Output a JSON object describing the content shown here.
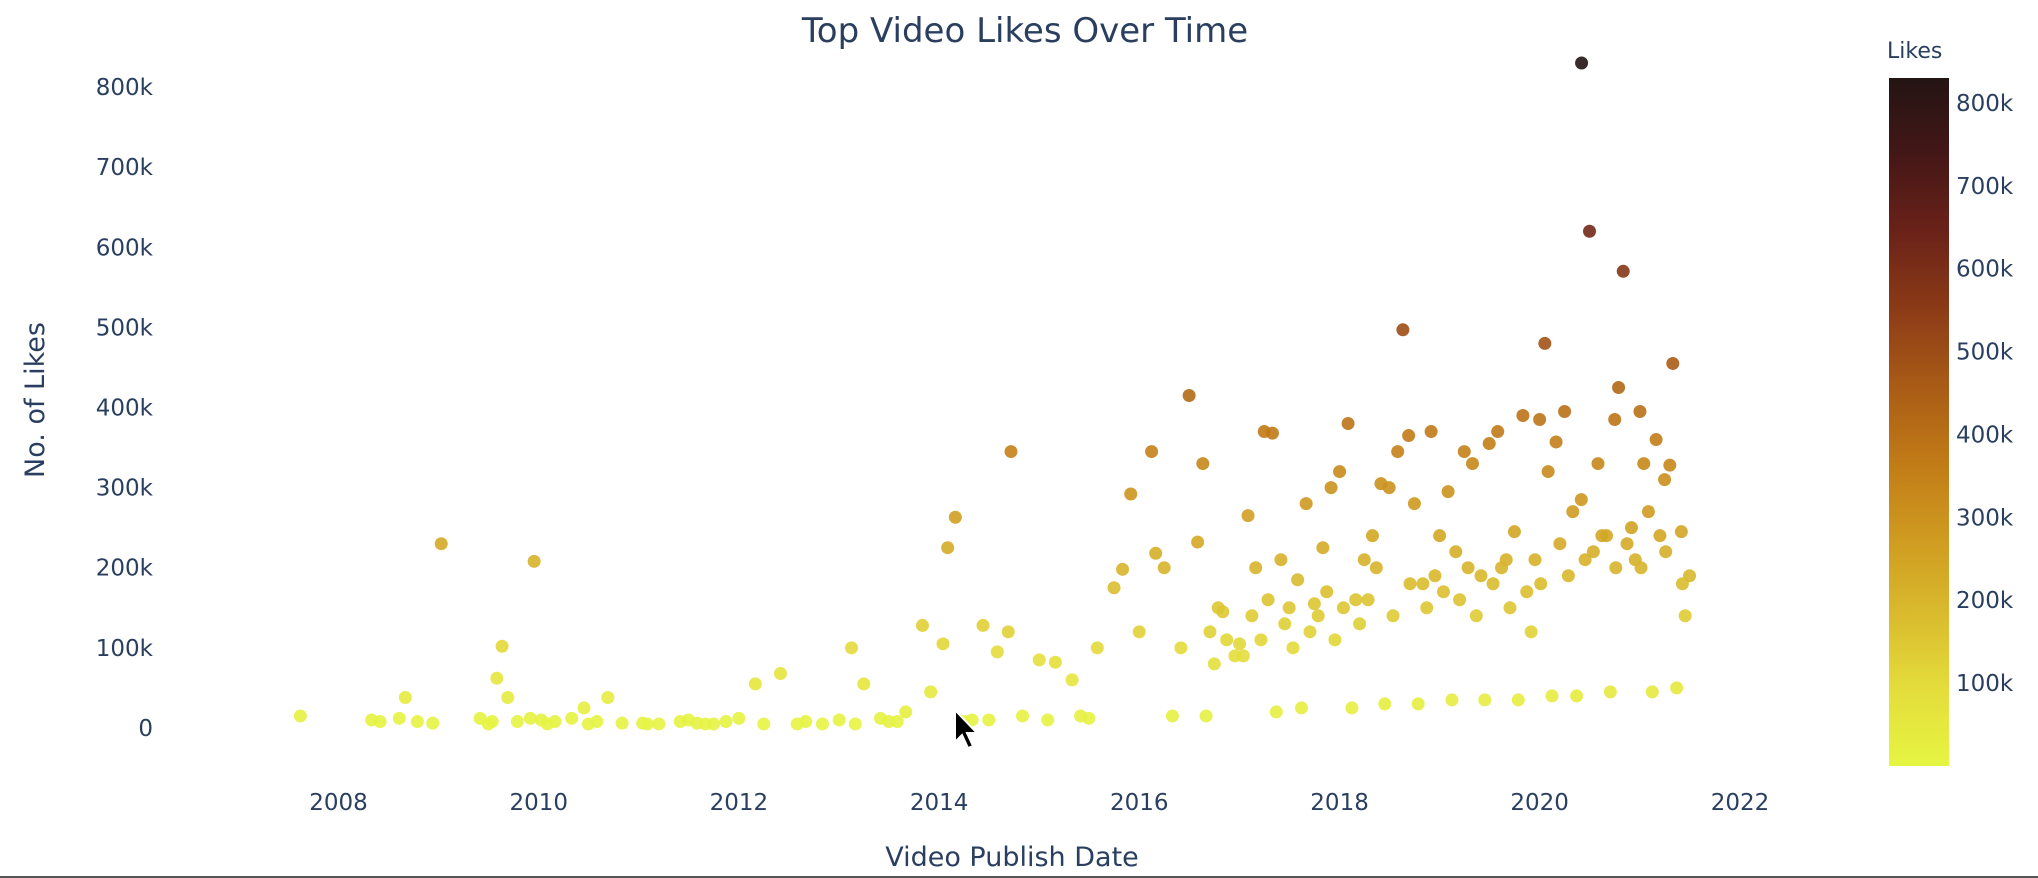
{
  "chart_data": {
    "type": "scatter",
    "title": "Top Video Likes Over Time",
    "xlabel": "Video Publish Date",
    "ylabel": "No. of Likes",
    "x_ticks": [
      "2008",
      "2010",
      "2012",
      "2014",
      "2016",
      "2018",
      "2020",
      "2022"
    ],
    "y_ticks": [
      "0",
      "100k",
      "200k",
      "300k",
      "400k",
      "500k",
      "600k",
      "700k",
      "800k"
    ],
    "xlim": [
      "2006-09-01",
      "2023-01-01"
    ],
    "ylim": [
      -40000,
      840000
    ],
    "grid": false,
    "marker_color": "by likes (continuous)",
    "colorbar": {
      "title": "Likes",
      "ticks": [
        "100k",
        "200k",
        "300k",
        "400k",
        "500k",
        "600k",
        "700k",
        "800k"
      ],
      "range": [
        0,
        830000
      ],
      "colorscale": [
        "#e6f542",
        "#e4dd3c",
        "#d9ba2d",
        "#cf9a20",
        "#c07a17",
        "#a85a16",
        "#8b3a17",
        "#6a2218",
        "#441717",
        "#241414"
      ]
    },
    "series": [
      {
        "x": [
          "2007-08-15",
          "2008-05-01",
          "2008-06-01",
          "2008-08-10",
          "2008-09-01",
          "2008-10-15",
          "2008-12-10",
          "2009-01-10",
          "2009-06-01",
          "2009-07-15",
          "2009-08-01",
          "2009-08-20",
          "2009-09-10",
          "2009-10-15",
          "2009-12-01",
          "2009-12-15",
          "2010-01-10",
          "2010-03-01",
          "2010-05-01",
          "2010-06-15",
          "2010-08-01",
          "2010-09-10",
          "2010-11-01",
          "2011-01-15",
          "2011-03-15",
          "2011-06-01",
          "2011-07-01",
          "2011-08-01",
          "2011-10-01",
          "2011-11-15",
          "2012-01-01",
          "2012-03-01",
          "2012-06-01",
          "2012-09-01",
          "2012-11-01",
          "2013-01-01",
          "2013-02-15",
          "2013-04-01",
          "2013-06-01",
          "2013-08-01",
          "2013-09-01",
          "2013-11-01",
          "2013-12-01",
          "2014-01-15",
          "2014-02-01",
          "2014-03-01",
          "2014-05-01",
          "2014-06-10",
          "2014-08-01",
          "2014-09-10",
          "2014-09-20",
          "2014-11-01",
          "2015-01-01",
          "2015-03-01",
          "2015-05-01",
          "2015-06-01",
          "2015-08-01",
          "2015-10-01",
          "2015-11-01",
          "2015-12-01",
          "2016-01-01",
          "2016-02-15",
          "2016-03-01",
          "2016-04-01",
          "2016-06-01",
          "2016-07-01",
          "2016-08-01",
          "2016-08-20",
          "2016-10-01",
          "2016-11-01",
          "2016-12-15",
          "2017-01-01",
          "2017-02-01",
          "2017-03-01",
          "2017-03-20",
          "2017-04-01",
          "2017-05-01",
          "2017-06-01",
          "2017-07-01",
          "2017-08-01",
          "2017-09-01",
          "2017-10-01",
          "2017-11-01",
          "2017-12-01",
          "2018-01-01",
          "2018-02-01",
          "2018-03-01",
          "2018-04-01",
          "2018-05-01",
          "2018-06-01",
          "2018-07-01",
          "2018-08-01",
          "2018-08-20",
          "2018-09-10",
          "2018-10-01",
          "2018-11-01",
          "2018-12-01",
          "2019-01-01",
          "2019-02-01",
          "2019-03-01",
          "2019-04-01",
          "2019-05-01",
          "2019-06-01",
          "2019-07-01",
          "2019-08-01",
          "2019-09-01",
          "2019-10-01",
          "2019-11-01",
          "2019-12-01",
          "2020-01-01",
          "2020-01-20",
          "2020-02-01",
          "2020-03-01",
          "2020-04-01",
          "2020-05-01",
          "2020-06-01",
          "2020-06-02",
          "2020-07-01",
          "2020-08-01",
          "2020-09-01",
          "2020-10-01",
          "2020-10-15",
          "2020-11-01",
          "2020-12-01",
          "2021-01-01",
          "2021-01-15",
          "2021-02-01",
          "2021-03-01",
          "2021-04-01",
          "2021-04-20",
          "2021-05-01",
          "2021-06-01",
          "2021-06-15",
          "2021-07-01",
          "2009-07-01",
          "2010-02-01",
          "2010-07-01",
          "2011-02-01",
          "2011-09-01",
          "2012-04-01",
          "2012-08-01",
          "2013-03-01",
          "2013-07-01",
          "2014-04-01",
          "2014-07-01",
          "2015-02-01",
          "2015-07-01",
          "2016-05-01",
          "2016-09-01",
          "2017-05-15",
          "2017-08-15",
          "2018-02-15",
          "2018-06-15",
          "2018-10-15",
          "2019-02-15",
          "2019-06-15",
          "2019-10-15",
          "2020-02-15",
          "2020-05-15",
          "2020-09-15",
          "2021-02-15",
          "2021-05-15",
          "2016-09-15",
          "2016-10-15",
          "2016-11-15",
          "2017-01-15",
          "2017-02-15",
          "2017-04-15",
          "2017-06-15",
          "2017-07-15",
          "2017-09-15",
          "2017-10-15",
          "2017-11-15",
          "2017-12-15",
          "2018-01-15",
          "2018-03-15",
          "2018-04-15",
          "2018-05-15",
          "2018-07-15",
          "2018-09-15",
          "2018-11-15",
          "2018-12-15",
          "2019-01-15",
          "2019-03-15",
          "2019-04-15",
          "2019-05-15",
          "2019-07-15",
          "2019-08-15",
          "2019-09-15",
          "2019-11-15",
          "2019-12-15",
          "2020-01-05",
          "2020-03-15",
          "2020-04-15",
          "2020-06-15",
          "2020-07-15",
          "2020-08-15",
          "2020-10-05",
          "2020-11-15",
          "2020-12-15",
          "2021-01-05",
          "2021-03-15",
          "2021-04-05",
          "2021-06-05"
        ],
        "y": [
          15000,
          10000,
          8000,
          12000,
          38000,
          8000,
          6000,
          230000,
          12000,
          8000,
          62000,
          102000,
          38000,
          8000,
          12000,
          208000,
          10000,
          8000,
          12000,
          25000,
          8000,
          38000,
          6000,
          6000,
          5000,
          8000,
          10000,
          6000,
          5000,
          8000,
          12000,
          55000,
          68000,
          8000,
          5000,
          10000,
          100000,
          55000,
          12000,
          8000,
          20000,
          128000,
          45000,
          105000,
          225000,
          263000,
          10000,
          128000,
          95000,
          120000,
          345000,
          15000,
          85000,
          82000,
          60000,
          15000,
          100000,
          175000,
          198000,
          292000,
          120000,
          345000,
          218000,
          200000,
          100000,
          415000,
          232000,
          330000,
          80000,
          145000,
          90000,
          105000,
          265000,
          200000,
          110000,
          370000,
          368000,
          210000,
          150000,
          185000,
          280000,
          155000,
          225000,
          300000,
          320000,
          380000,
          160000,
          210000,
          240000,
          305000,
          300000,
          345000,
          497000,
          365000,
          280000,
          180000,
          370000,
          240000,
          295000,
          220000,
          345000,
          330000,
          190000,
          355000,
          370000,
          210000,
          245000,
          390000,
          120000,
          385000,
          480000,
          320000,
          357000,
          395000,
          270000,
          285000,
          830000,
          620000,
          330000,
          240000,
          385000,
          425000,
          570000,
          250000,
          395000,
          330000,
          270000,
          360000,
          310000,
          328000,
          455000,
          245000,
          140000,
          190000,
          5000,
          5000,
          5000,
          5000,
          5000,
          5000,
          5000,
          5000,
          8000,
          8000,
          10000,
          10000,
          12000,
          15000,
          15000,
          20000,
          25000,
          25000,
          30000,
          30000,
          35000,
          35000,
          35000,
          40000,
          40000,
          45000,
          45000,
          50000,
          120000,
          150000,
          110000,
          90000,
          140000,
          160000,
          130000,
          100000,
          120000,
          140000,
          170000,
          110000,
          150000,
          130000,
          160000,
          200000,
          140000,
          180000,
          150000,
          190000,
          170000,
          160000,
          200000,
          140000,
          180000,
          200000,
          150000,
          170000,
          210000,
          180000,
          230000,
          190000,
          210000,
          220000,
          240000,
          200000,
          230000,
          210000,
          200000,
          240000,
          220000,
          180000
        ]
      }
    ]
  }
}
